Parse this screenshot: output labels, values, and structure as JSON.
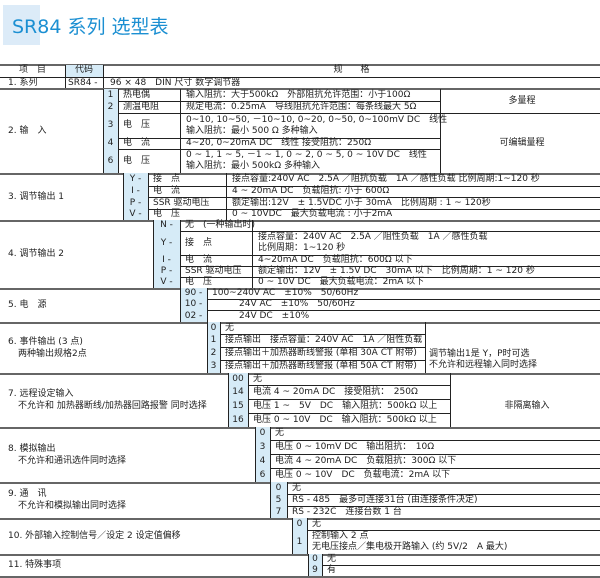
{
  "title": "SR84 系列  选型表",
  "header": {
    "item": "项　目",
    "code": "代码",
    "spec": "规　　格"
  },
  "series": {
    "item": "1. 系列",
    "code": "SR84 -",
    "spec": "96 × 48　DIN 尺寸  数字调节器"
  },
  "sections": [
    {
      "item": [
        "2. 输　入"
      ],
      "rows": [
        {
          "code": "1",
          "label": "热电偶",
          "spec": [
            "输入阻抗：大于500kΩ　外部阻抗允许范围：小于100Ω"
          ]
        },
        {
          "code": "2",
          "label": "测温电阻",
          "spec": [
            "规定电流：0.25mA　导线阻抗允许范围：每条线最大 5Ω"
          ]
        },
        {
          "code": "3",
          "label": "电　压",
          "spec": [
            "0~10, 10~50, －10~10, 0~20, 0~50, 0~100mV DC　线性",
            "输入阻抗：最小 500 Ω  多种输入"
          ]
        },
        {
          "code": "4",
          "label": "电　流",
          "spec": [
            "4~20,  0~20mA DC　线性  接受阻抗：250Ω"
          ]
        },
        {
          "code": "6",
          "label": "电　压",
          "spec": [
            "0 ~ 1,  1 ~ 5,  －1 ~ 1,  0 ~ 2,  0 ~ 5,  0 ~ 10V DC　线性",
            "输入阻抗：最小 500kΩ  多种输入"
          ]
        }
      ],
      "notes": [
        {
          "text": "多量程",
          "from": 0,
          "to": 1
        },
        {
          "text": "可编辑量程",
          "from": 2,
          "to": 4
        }
      ]
    },
    {
      "item": [
        "3. 调节输出 1"
      ],
      "rows": [
        {
          "code": "Y -",
          "label": "接　点",
          "spec": [
            "接点容量:240V AC　2.5A ／阻抗负载　1A ／感性负载  比例周期:1~120 秒"
          ]
        },
        {
          "code": "I -",
          "label": "电　流",
          "spec": [
            "4 ~ 20mA DC　负载阻抗: 小于 600Ω"
          ]
        },
        {
          "code": "P -",
          "label": "SSR 驱动电压",
          "spec": [
            "额定输出:12V　± 1.5VDC  小于 30mA　比例周期 : 1 ~ 120秒"
          ]
        },
        {
          "code": "V -",
          "label": "电　压",
          "spec": [
            "0 ~ 10VDC　最大负载电流 : 小于2mA"
          ]
        }
      ]
    },
    {
      "item": [
        "4. 调节输出 2"
      ],
      "rows": [
        {
          "code": "N -",
          "label": "无　(一种输出时)",
          "spec": []
        },
        {
          "code": "Y -",
          "label": "接　点",
          "spec": [
            "接点容量：240V AC　2.5A ／阻性负载　1A ／感性负载",
            "比例周期：1~120 秒"
          ]
        },
        {
          "code": "I -",
          "label": "电　流",
          "spec": [
            "4~20mA DC　负载阻抗：600Ω 以下"
          ]
        },
        {
          "code": "P -",
          "label": "SSR 驱动电压",
          "spec": [
            "额定输出：12V　± 1.5V DC　30mA 以下　比例周期：1 ~ 120 秒"
          ]
        },
        {
          "code": "V -",
          "label": "电　压",
          "spec": [
            "0 ~ 10V DC　最大负载电流：2mA 以下"
          ]
        }
      ]
    },
    {
      "item": [
        "5. 电　源"
      ],
      "rows": [
        {
          "code": "90 -",
          "spec": [
            "100~240V AC　±10%　50/60Hz"
          ]
        },
        {
          "code": "10 -",
          "spec": [
            "　　　24V AC　±10%　50/60Hz"
          ]
        },
        {
          "code": "02 -",
          "spec": [
            "　　　24V DC　±10%"
          ]
        }
      ]
    },
    {
      "item": [
        "6. 事件输出 (3 点)",
        "两种输出规格2点"
      ],
      "rows": [
        {
          "code": "0",
          "spec": [
            "无"
          ]
        },
        {
          "code": "1",
          "spec": [
            "接点输出　接点容量：240V AC　1A ／阻性负载"
          ]
        },
        {
          "code": "2",
          "spec": [
            "接点输出＋加热器断线警报 (单相 30A CT 附带)"
          ]
        },
        {
          "code": "3",
          "spec": [
            "接点输出＋加热器断线警报 (单相 50A CT 附带)"
          ]
        }
      ],
      "notes": [
        {
          "text": "调节输出1是 Y，P时可选\n不允许和远程输入同时选择",
          "from": 2,
          "to": 3
        }
      ]
    },
    {
      "item": [
        "7. 远程设定输入",
        "不允许和 加热器断线/加热器回路报警 同时选择"
      ],
      "rows": [
        {
          "code": "00",
          "spec": [
            "无"
          ]
        },
        {
          "code": "14",
          "spec": [
            "电流 4 ~ 20mA DC　接受阻抗：　250Ω"
          ]
        },
        {
          "code": "15",
          "spec": [
            "电压 1 ~　5V　DC　输入阻抗：500kΩ 以上"
          ]
        },
        {
          "code": "16",
          "spec": [
            "电压 0 ~ 10V　DC　输入阻抗：500kΩ 以上"
          ]
        }
      ],
      "notes": [
        {
          "text": "非隔离输入",
          "from": 1,
          "to": 3
        }
      ]
    },
    {
      "item": [
        "8. 模拟输出",
        "不允许和通讯选件同时选择"
      ],
      "rows": [
        {
          "code": "0",
          "spec": [
            "无"
          ]
        },
        {
          "code": "3",
          "spec": [
            "电压 0 ~ 10mV DC　输出阻抗：　10Ω"
          ]
        },
        {
          "code": "4",
          "spec": [
            "电流 4 ~ 20mA DC　负载阻抗：300Ω 以下"
          ]
        },
        {
          "code": "6",
          "spec": [
            "电压 0 ~ 10V　DC　负载电流：2mA 以下"
          ]
        }
      ]
    },
    {
      "item": [
        "9. 通　讯",
        "不允许和模拟输出同时选择"
      ],
      "rows": [
        {
          "code": "0",
          "spec": [
            "无"
          ]
        },
        {
          "code": "5",
          "spec": [
            "RS - 485　最多可连接31台 (由连接条件决定)"
          ]
        },
        {
          "code": "7",
          "spec": [
            "RS - 232C　连接台数 1 台"
          ]
        }
      ]
    },
    {
      "item": [
        "10. 外部输入控制信号／设定 2 设定值偏移"
      ],
      "rows": [
        {
          "code": "0",
          "spec": [
            "无"
          ]
        },
        {
          "code": "1",
          "spec": [
            "控制输入 2 点",
            "无电压接点／集电极开路输入 (约 5V/2　A 最大)"
          ]
        }
      ]
    },
    {
      "item": [
        "11. 特殊事项"
      ],
      "rows": [
        {
          "code": "0",
          "spec": [
            "无"
          ]
        },
        {
          "code": "9",
          "spec": [
            "有"
          ]
        }
      ]
    }
  ]
}
